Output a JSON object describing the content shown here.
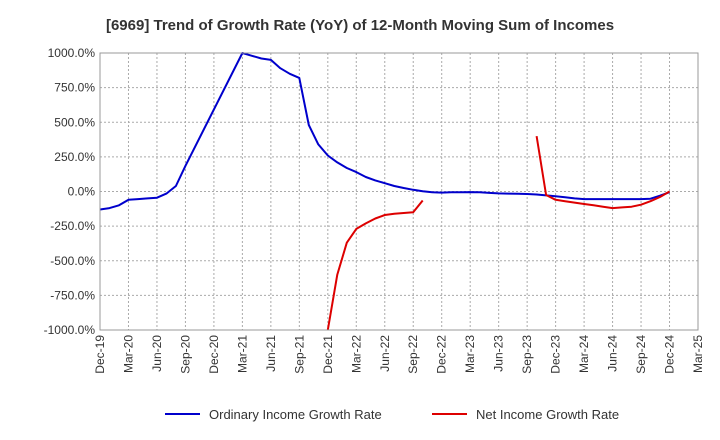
{
  "chart_data": {
    "type": "line",
    "title": "[6969]  Trend of Growth Rate (YoY) of 12-Month Moving Sum of Incomes",
    "xlabel": "",
    "ylabel": "",
    "ylim": [
      -1000,
      1000
    ],
    "y_ticks": [
      "1000.0%",
      "750.0%",
      "500.0%",
      "250.0%",
      "0.0%",
      "-250.0%",
      "-500.0%",
      "-750.0%",
      "-1000.0%"
    ],
    "x_tick_labels": [
      "Dec-19",
      "Mar-20",
      "Jun-20",
      "Sep-20",
      "Dec-20",
      "Mar-21",
      "Jun-21",
      "Sep-21",
      "Dec-21",
      "Mar-22",
      "Jun-22",
      "Sep-22",
      "Dec-22",
      "Mar-23",
      "Jun-23",
      "Sep-23",
      "Dec-23",
      "Mar-24",
      "Jun-24",
      "Sep-24",
      "Dec-24",
      "Mar-25"
    ],
    "grid": true,
    "legend_position": "bottom",
    "series": [
      {
        "name": "Ordinary Income Growth Rate",
        "color": "#0000cc",
        "points": [
          [
            "Dec-19",
            -130
          ],
          [
            "Jan-20",
            -120
          ],
          [
            "Feb-20",
            -100
          ],
          [
            "Mar-20",
            -60
          ],
          [
            "Apr-20",
            -55
          ],
          [
            "May-20",
            -50
          ],
          [
            "Jun-20",
            -45
          ],
          [
            "Jul-20",
            -15
          ],
          [
            "Aug-20",
            40
          ],
          [
            "Sep-20",
            185
          ],
          [
            "Mar-21",
            1000
          ],
          [
            "Apr-21",
            980
          ],
          [
            "May-21",
            960
          ],
          [
            "Jun-21",
            950
          ],
          [
            "Jul-21",
            890
          ],
          [
            "Aug-21",
            850
          ],
          [
            "Sep-21",
            820
          ],
          [
            "Oct-21",
            480
          ],
          [
            "Nov-21",
            340
          ],
          [
            "Dec-21",
            260
          ],
          [
            "Jan-22",
            210
          ],
          [
            "Feb-22",
            170
          ],
          [
            "Mar-22",
            140
          ],
          [
            "Apr-22",
            105
          ],
          [
            "May-22",
            80
          ],
          [
            "Jun-22",
            60
          ],
          [
            "Jul-22",
            40
          ],
          [
            "Aug-22",
            25
          ],
          [
            "Sep-22",
            12
          ],
          [
            "Oct-22",
            2
          ],
          [
            "Nov-22",
            -5
          ],
          [
            "Dec-22",
            -8
          ],
          [
            "Jan-23",
            -6
          ],
          [
            "Feb-23",
            -5
          ],
          [
            "Mar-23",
            -4
          ],
          [
            "Apr-23",
            -6
          ],
          [
            "May-23",
            -10
          ],
          [
            "Jun-23",
            -14
          ],
          [
            "Jul-23",
            -15
          ],
          [
            "Aug-23",
            -16
          ],
          [
            "Sep-23",
            -18
          ],
          [
            "Oct-23",
            -22
          ],
          [
            "Nov-23",
            -28
          ],
          [
            "Dec-23",
            -35
          ],
          [
            "Jan-24",
            -42
          ],
          [
            "Feb-24",
            -50
          ],
          [
            "Mar-24",
            -55
          ],
          [
            "Apr-24",
            -55
          ],
          [
            "May-24",
            -55
          ],
          [
            "Jun-24",
            -55
          ],
          [
            "Jul-24",
            -55
          ],
          [
            "Aug-24",
            -55
          ],
          [
            "Sep-24",
            -55
          ],
          [
            "Oct-24",
            -52
          ],
          [
            "Nov-24",
            -30
          ],
          [
            "Dec-24",
            -5
          ]
        ]
      },
      {
        "name": "Net Income Growth Rate",
        "color": "#dd0000",
        "points": [
          [
            "Dec-21",
            -1000
          ],
          [
            "Jan-22",
            -600
          ],
          [
            "Feb-22",
            -370
          ],
          [
            "Mar-22",
            -270
          ],
          [
            "Apr-22",
            -230
          ],
          [
            "May-22",
            -195
          ],
          [
            "Jun-22",
            -170
          ],
          [
            "Jul-22",
            -160
          ],
          [
            "Aug-22",
            -155
          ],
          [
            "Sep-22",
            -150
          ],
          [
            "Oct-22",
            -65
          ],
          null,
          [
            "Oct-23",
            400
          ],
          [
            "Nov-23",
            -25
          ],
          [
            "Dec-23",
            -60
          ],
          [
            "Jan-24",
            -70
          ],
          [
            "Feb-24",
            -80
          ],
          [
            "Mar-24",
            -90
          ],
          [
            "Apr-24",
            -100
          ],
          [
            "May-24",
            -110
          ],
          [
            "Jun-24",
            -120
          ],
          [
            "Jul-24",
            -115
          ],
          [
            "Aug-24",
            -110
          ],
          [
            "Sep-24",
            -95
          ],
          [
            "Oct-24",
            -70
          ],
          [
            "Nov-24",
            -40
          ],
          [
            "Dec-24",
            0
          ]
        ]
      }
    ]
  }
}
